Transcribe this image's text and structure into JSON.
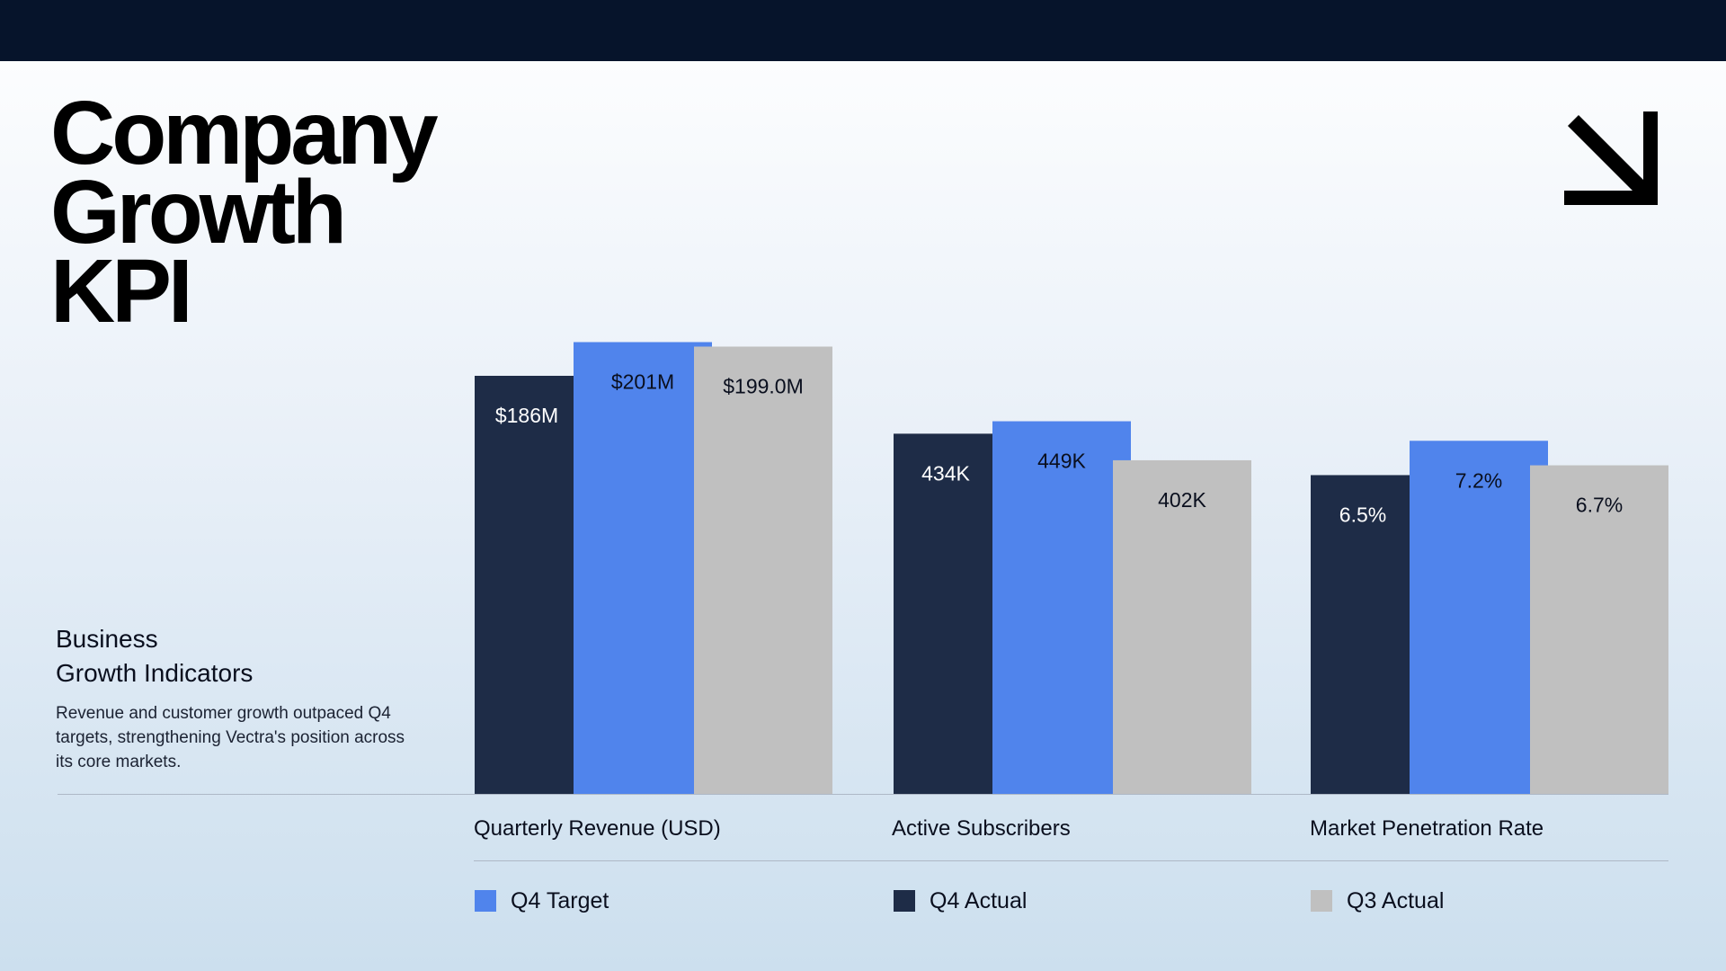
{
  "header": {
    "title_lines": [
      "Company",
      "Growth",
      "KPI"
    ]
  },
  "sidebar": {
    "subtitle_lines": [
      "Business",
      "Growth Indicators"
    ],
    "description": "Revenue and customer growth outpaced Q4 targets, strengthening Vectra's position across its core markets."
  },
  "icons": {
    "arrow": "arrow-down-right-icon"
  },
  "colors": {
    "q4_actual": "#1e2c47",
    "q4_target": "#5084ec",
    "q3_actual": "#c0c0c0",
    "top_bar": "#06142b"
  },
  "chart_data": {
    "type": "bar",
    "categories": [
      "Quarterly Revenue (USD)",
      "Active Subscribers",
      "Market Penetration Rate"
    ],
    "series": [
      {
        "name": "Q4 Actual",
        "color": "#1e2c47",
        "values": [
          186,
          434,
          6.5
        ],
        "labels": [
          "$186M",
          "434K",
          "6.5%"
        ]
      },
      {
        "name": "Q4 Target",
        "color": "#5084ec",
        "values": [
          201,
          449,
          7.2
        ],
        "labels": [
          "$201M",
          "449K",
          "7.2%"
        ]
      },
      {
        "name": "Q3 Actual",
        "color": "#c0c0c0",
        "values": [
          199.0,
          402,
          6.7
        ],
        "labels": [
          "$199.0M",
          "402K",
          "6.7%"
        ]
      }
    ],
    "group_ylim": [
      [
        0,
        240
      ],
      [
        0,
        650
      ],
      [
        0,
        11
      ]
    ],
    "legend_order": [
      "Q4 Target",
      "Q4 Actual",
      "Q3 Actual"
    ],
    "legend_position": "bottom",
    "grid": false
  }
}
